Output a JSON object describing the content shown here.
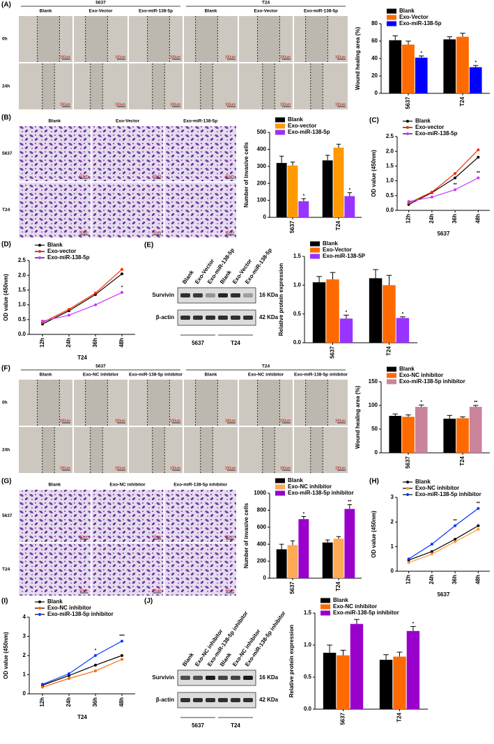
{
  "images": {
    "A": {
      "label": "(A)",
      "groups": [
        "5637",
        "T24"
      ],
      "columns": [
        "Blank",
        "Exo-Vector",
        "Exo-miR-138-5p"
      ],
      "rows": [
        "0h",
        "24h"
      ],
      "scale": "100um"
    },
    "B": {
      "label": "(B)",
      "columns": [
        "Blank",
        "Exo-Vector",
        "Exo-miR-138-5p"
      ],
      "rows": [
        "5637",
        "T24"
      ],
      "scale": "50um"
    },
    "F": {
      "label": "(F)",
      "groups": [
        "5637",
        "T24"
      ],
      "columns": [
        "Blank",
        "Exo-NC inhibitor",
        "Exo-miR-138-5p inhibitor"
      ],
      "rows": [
        "0h",
        "24h"
      ],
      "scale": "100um"
    },
    "G": {
      "label": "(G)",
      "columns": [
        "Blank",
        "Exo-NC inhibitor",
        "Exo-miR-138-5p inhibitor"
      ],
      "rows": [
        "5637",
        "T24"
      ],
      "scale": "50um"
    }
  },
  "blots": {
    "E": {
      "label": "(E)",
      "lanes": [
        "Blank",
        "Exo-Vector",
        "Exo-miR-138-5p",
        "Blank",
        "Exo-Vector",
        "Exo-miR-138-5p"
      ],
      "rows": [
        {
          "name": "Survivin",
          "size": "16 KDa"
        },
        {
          "name": "β-actin",
          "size": "42 KDa"
        }
      ],
      "groups": [
        "5637",
        "T24"
      ]
    },
    "J": {
      "label": "(J)",
      "lanes": [
        "Blank",
        "Exo-NC inhibitor",
        "Exo-miR-138-5p inhibitor",
        "Blank",
        "Exo-NC inhibitor",
        "Exo-miR-138-5p inhibitor"
      ],
      "rows": [
        {
          "name": "Survivin",
          "size": "16 KDa"
        },
        {
          "name": "β-actin",
          "size": "42 KDa"
        }
      ],
      "groups": [
        "5637",
        "T24"
      ]
    }
  },
  "chart_data": [
    {
      "type": "bar",
      "ylabel": "Wound healing area (%)",
      "categories": [
        "5637",
        "T24"
      ],
      "ylim": [
        0,
        80
      ],
      "yticks": [
        0,
        20,
        40,
        60,
        80
      ],
      "series": [
        {
          "name": "Blank",
          "color": "#000000",
          "values": [
            61,
            62
          ],
          "errors": [
            5,
            3
          ]
        },
        {
          "name": "Exo-Vector",
          "color": "#ff6a00",
          "values": [
            56,
            65
          ],
          "errors": [
            4,
            4
          ]
        },
        {
          "name": "Exo-miR-138-5p",
          "color": "#0000ff",
          "values": [
            41,
            30
          ],
          "errors": [
            2,
            2
          ],
          "significance": [
            "*",
            "*"
          ]
        }
      ]
    },
    {
      "type": "bar",
      "ylabel": "Number of invasive cells",
      "categories": [
        "5637",
        "T24"
      ],
      "ylim": [
        0,
        500
      ],
      "yticks": [
        0,
        100,
        200,
        300,
        400,
        500
      ],
      "series": [
        {
          "name": "Blank",
          "color": "#000000",
          "values": [
            320,
            335
          ],
          "errors": [
            40,
            30
          ]
        },
        {
          "name": "Exo-vector",
          "color": "#ff9900",
          "values": [
            305,
            410
          ],
          "errors": [
            20,
            20
          ]
        },
        {
          "name": "Exo-miR-138-5p",
          "color": "#9933ff",
          "values": [
            95,
            125
          ],
          "errors": [
            15,
            20
          ],
          "significance": [
            "*",
            "*"
          ]
        }
      ]
    },
    {
      "type": "line",
      "label": "(C)",
      "ylabel": "OD value (450nm)",
      "xlabel": "5637",
      "categories": [
        "12h",
        "24h",
        "36h",
        "48h"
      ],
      "ylim": [
        0,
        2.5
      ],
      "yticks": [
        {
          "value": 0,
          "label": "0.0"
        },
        0.5,
        {
          "value": 1,
          "label": "1.0"
        },
        1.5,
        {
          "value": 2,
          "label": "2.0"
        },
        2.5
      ],
      "series": [
        {
          "name": "Blank",
          "color": "#000000",
          "values": [
            0.2,
            0.6,
            1.1,
            1.8
          ]
        },
        {
          "name": "Exo-vector",
          "color": "#ff2a00",
          "values": [
            0.25,
            0.62,
            1.25,
            2.05
          ]
        },
        {
          "name": "Exo-miR-138-5p",
          "color": "#cc33ff",
          "values": [
            0.3,
            0.45,
            0.7,
            1.1
          ],
          "significance": [
            null,
            null,
            "**",
            "**"
          ]
        }
      ]
    },
    {
      "type": "line",
      "label": "(D)",
      "ylabel": "OD value (450nm)",
      "xlabel": "T24",
      "categories": [
        "12h",
        "24h",
        "36h",
        "48h"
      ],
      "ylim": [
        0,
        2.5
      ],
      "yticks": [
        {
          "value": 0,
          "label": "0.0"
        },
        0.5,
        {
          "value": 1,
          "label": "1.0"
        },
        1.5,
        {
          "value": 2,
          "label": "2.0"
        },
        2.5
      ],
      "series": [
        {
          "name": "Blank",
          "color": "#000000",
          "values": [
            0.35,
            0.8,
            1.35,
            2.05
          ]
        },
        {
          "name": "Exo-vector",
          "color": "#ff2a00",
          "values": [
            0.4,
            0.85,
            1.4,
            2.2
          ]
        },
        {
          "name": "Exo-miR-138-5p",
          "color": "#cc33ff",
          "values": [
            0.45,
            0.65,
            1.0,
            1.42
          ],
          "significance": [
            null,
            null,
            null,
            "*"
          ]
        }
      ]
    },
    {
      "type": "bar",
      "ylabel": "Relative protein expression",
      "categories": [
        "5637",
        "T24"
      ],
      "ylim": [
        0,
        1.5
      ],
      "yticks": [
        {
          "value": 0,
          "label": "0.0"
        },
        0.5,
        {
          "value": 1,
          "label": "1.0"
        },
        1.5
      ],
      "series": [
        {
          "name": "Blank",
          "color": "#000000",
          "values": [
            1.05,
            1.12
          ],
          "errors": [
            0.1,
            0.15
          ]
        },
        {
          "name": "Exo-Vector",
          "color": "#ff6a00",
          "values": [
            1.1,
            1.0
          ],
          "errors": [
            0.12,
            0.17
          ]
        },
        {
          "name": "Exo-miR-138-5P",
          "color": "#9933ff",
          "values": [
            0.42,
            0.43
          ],
          "errors": [
            0.06,
            0.02
          ],
          "significance": [
            "*",
            "*"
          ]
        }
      ]
    },
    {
      "type": "bar",
      "ylabel": "Wound healing area (%)",
      "categories": [
        "5637",
        "T24"
      ],
      "ylim": [
        0,
        150
      ],
      "yticks": [
        0,
        50,
        100,
        150
      ],
      "series": [
        {
          "name": "Blank",
          "color": "#000000",
          "values": [
            78,
            72
          ],
          "errors": [
            4,
            7
          ]
        },
        {
          "name": "Exo-NC inhibitor",
          "color": "#ff6a00",
          "values": [
            76,
            73
          ],
          "errors": [
            4,
            3
          ]
        },
        {
          "name": "Exo-miR-138-5p inhibitor",
          "color": "#c9849a",
          "values": [
            97,
            97
          ],
          "errors": [
            4,
            3
          ],
          "significance": [
            "*",
            "**"
          ]
        }
      ]
    },
    {
      "type": "bar",
      "ylabel": "Number of invasive cells",
      "categories": [
        "5637",
        "T24"
      ],
      "ylim": [
        0,
        1000
      ],
      "yticks": [
        0,
        200,
        400,
        600,
        800,
        1000
      ],
      "series": [
        {
          "name": "Blank",
          "color": "#000000",
          "values": [
            340,
            420
          ],
          "errors": [
            60,
            30
          ]
        },
        {
          "name": "Exo-NC inhibitor",
          "color": "#ffaa55",
          "values": [
            390,
            465
          ],
          "errors": [
            50,
            25
          ]
        },
        {
          "name": "Exo-miR-138-5p inhibitor",
          "color": "#9900cc",
          "values": [
            695,
            815
          ],
          "errors": [
            30,
            50
          ],
          "significance": [
            "*",
            "**"
          ]
        }
      ]
    },
    {
      "type": "line",
      "label": "(H)",
      "ylabel": "OD value (450nm)",
      "xlabel": "5637",
      "categories": [
        "12h",
        "24h",
        "36h",
        "48h"
      ],
      "ylim": [
        0,
        3
      ],
      "yticks": [
        0,
        1,
        2,
        3
      ],
      "series": [
        {
          "name": "Blank",
          "color": "#000000",
          "values": [
            0.45,
            0.8,
            1.3,
            1.85
          ]
        },
        {
          "name": "Exo-NC inhibitor",
          "color": "#ff9933",
          "values": [
            0.35,
            0.7,
            1.2,
            1.7
          ]
        },
        {
          "name": "Exo-miR-138-5p inhibitor",
          "color": "#0033ff",
          "values": [
            0.5,
            1.1,
            1.85,
            2.55
          ],
          "significance": [
            null,
            null,
            "**",
            "**"
          ]
        }
      ]
    },
    {
      "type": "line",
      "label": "(I)",
      "ylabel": "OD value (450nm)",
      "xlabel": "T24",
      "categories": [
        "12h",
        "24h",
        "36h",
        "48h"
      ],
      "ylim": [
        0,
        4
      ],
      "yticks": [
        0,
        1,
        2,
        3,
        4
      ],
      "series": [
        {
          "name": "Blank",
          "color": "#000000",
          "values": [
            0.45,
            0.95,
            1.5,
            2.0
          ]
        },
        {
          "name": "Exo-NC inhibitor",
          "color": "#ff6a00",
          "values": [
            0.35,
            0.8,
            1.2,
            1.8
          ]
        },
        {
          "name": "Exo-miR-138-5p inhibitor",
          "color": "#0033ff",
          "values": [
            0.5,
            1.05,
            2.0,
            2.75
          ],
          "significance": [
            null,
            null,
            "*",
            "***"
          ]
        }
      ]
    },
    {
      "type": "bar",
      "ylabel": "Relative protein expression",
      "categories": [
        "5637",
        "T24"
      ],
      "ylim": [
        0,
        1.5
      ],
      "yticks": [
        {
          "value": 0,
          "label": "0.0"
        },
        0.5,
        {
          "value": 1,
          "label": "1.0"
        },
        1.5
      ],
      "series": [
        {
          "name": "Blank",
          "color": "#000000",
          "values": [
            0.88,
            0.77
          ],
          "errors": [
            0.12,
            0.08
          ]
        },
        {
          "name": "Exo-NC inhibitor",
          "color": "#ff6a00",
          "values": [
            0.84,
            0.82
          ],
          "errors": [
            0.08,
            0.07
          ]
        },
        {
          "name": "Exo-miR-138-5p inhibitor",
          "color": "#9900cc",
          "values": [
            1.33,
            1.22
          ],
          "errors": [
            0.07,
            0.07
          ],
          "significance": [
            null,
            "*"
          ]
        }
      ]
    }
  ]
}
